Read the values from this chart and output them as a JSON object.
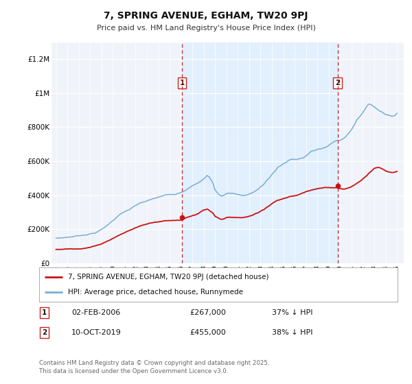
{
  "title": "7, SPRING AVENUE, EGHAM, TW20 9PJ",
  "subtitle": "Price paid vs. HM Land Registry's House Price Index (HPI)",
  "background_color": "#ffffff",
  "plot_bg_color": "#f0f4fa",
  "ylabel_color": "#333333",
  "sale1_price": 267000,
  "sale1_year": 2006.085,
  "sale2_price": 455000,
  "sale2_year": 2019.775,
  "hpi_color": "#7aadd4",
  "price_color": "#cc1111",
  "vline_color": "#cc2222",
  "shade_color": "#ddeeff",
  "ylim": [
    0,
    1300000
  ],
  "yticks": [
    0,
    200000,
    400000,
    600000,
    800000,
    1000000,
    1200000
  ],
  "ytick_labels": [
    "£0",
    "£200K",
    "£400K",
    "£600K",
    "£800K",
    "£1M",
    "£1.2M"
  ],
  "legend_label_price": "7, SPRING AVENUE, EGHAM, TW20 9PJ (detached house)",
  "legend_label_hpi": "HPI: Average price, detached house, Runnymede",
  "sale1_date_str": "02-FEB-2006",
  "sale2_date_str": "10-OCT-2019",
  "sale1_pct": "37% ↓ HPI",
  "sale2_pct": "38% ↓ HPI",
  "sale1_price_str": "£267,000",
  "sale2_price_str": "£455,000",
  "footer": "Contains HM Land Registry data © Crown copyright and database right 2025.\nThis data is licensed under the Open Government Licence v3.0.",
  "hpi_keypoints": [
    [
      1995.0,
      145000
    ],
    [
      1995.5,
      148000
    ],
    [
      1996.0,
      152000
    ],
    [
      1996.5,
      156000
    ],
    [
      1997.0,
      162000
    ],
    [
      1997.5,
      168000
    ],
    [
      1998.0,
      175000
    ],
    [
      1998.5,
      183000
    ],
    [
      1999.0,
      200000
    ],
    [
      1999.5,
      225000
    ],
    [
      2000.0,
      255000
    ],
    [
      2000.5,
      285000
    ],
    [
      2001.0,
      305000
    ],
    [
      2001.5,
      320000
    ],
    [
      2002.0,
      340000
    ],
    [
      2002.5,
      355000
    ],
    [
      2003.0,
      365000
    ],
    [
      2003.5,
      375000
    ],
    [
      2004.0,
      385000
    ],
    [
      2004.5,
      395000
    ],
    [
      2005.0,
      400000
    ],
    [
      2005.5,
      405000
    ],
    [
      2006.0,
      420000
    ],
    [
      2006.5,
      440000
    ],
    [
      2007.0,
      460000
    ],
    [
      2007.5,
      475000
    ],
    [
      2007.8,
      490000
    ],
    [
      2008.0,
      500000
    ],
    [
      2008.3,
      520000
    ],
    [
      2008.5,
      510000
    ],
    [
      2008.8,
      475000
    ],
    [
      2009.0,
      435000
    ],
    [
      2009.3,
      410000
    ],
    [
      2009.5,
      400000
    ],
    [
      2009.8,
      405000
    ],
    [
      2010.0,
      415000
    ],
    [
      2010.3,
      420000
    ],
    [
      2010.5,
      418000
    ],
    [
      2010.8,
      415000
    ],
    [
      2011.0,
      412000
    ],
    [
      2011.3,
      408000
    ],
    [
      2011.5,
      405000
    ],
    [
      2011.8,
      408000
    ],
    [
      2012.0,
      415000
    ],
    [
      2012.3,
      422000
    ],
    [
      2012.5,
      430000
    ],
    [
      2012.8,
      440000
    ],
    [
      2013.0,
      455000
    ],
    [
      2013.3,
      470000
    ],
    [
      2013.5,
      490000
    ],
    [
      2013.8,
      510000
    ],
    [
      2014.0,
      530000
    ],
    [
      2014.3,
      550000
    ],
    [
      2014.5,
      570000
    ],
    [
      2014.8,
      580000
    ],
    [
      2015.0,
      590000
    ],
    [
      2015.3,
      600000
    ],
    [
      2015.5,
      610000
    ],
    [
      2015.8,
      615000
    ],
    [
      2016.0,
      615000
    ],
    [
      2016.3,
      620000
    ],
    [
      2016.5,
      625000
    ],
    [
      2016.8,
      630000
    ],
    [
      2017.0,
      640000
    ],
    [
      2017.3,
      655000
    ],
    [
      2017.5,
      665000
    ],
    [
      2017.8,
      670000
    ],
    [
      2018.0,
      675000
    ],
    [
      2018.3,
      680000
    ],
    [
      2018.5,
      685000
    ],
    [
      2018.8,
      690000
    ],
    [
      2019.0,
      700000
    ],
    [
      2019.3,
      715000
    ],
    [
      2019.5,
      725000
    ],
    [
      2019.775,
      730000
    ],
    [
      2020.0,
      730000
    ],
    [
      2020.3,
      745000
    ],
    [
      2020.5,
      755000
    ],
    [
      2020.8,
      780000
    ],
    [
      2021.0,
      800000
    ],
    [
      2021.3,
      830000
    ],
    [
      2021.5,
      855000
    ],
    [
      2021.8,
      880000
    ],
    [
      2022.0,
      900000
    ],
    [
      2022.3,
      930000
    ],
    [
      2022.5,
      950000
    ],
    [
      2022.8,
      945000
    ],
    [
      2023.0,
      935000
    ],
    [
      2023.3,
      920000
    ],
    [
      2023.5,
      910000
    ],
    [
      2023.8,
      900000
    ],
    [
      2024.0,
      895000
    ],
    [
      2024.3,
      890000
    ],
    [
      2024.5,
      885000
    ],
    [
      2024.8,
      888000
    ],
    [
      2025.0,
      900000
    ]
  ],
  "price_keypoints": [
    [
      1995.0,
      80000
    ],
    [
      1995.5,
      81000
    ],
    [
      1996.0,
      83000
    ],
    [
      1996.5,
      85000
    ],
    [
      1997.0,
      88000
    ],
    [
      1997.5,
      92000
    ],
    [
      1998.0,
      98000
    ],
    [
      1998.5,
      106000
    ],
    [
      1999.0,
      118000
    ],
    [
      1999.5,
      135000
    ],
    [
      2000.0,
      152000
    ],
    [
      2000.5,
      170000
    ],
    [
      2001.0,
      185000
    ],
    [
      2001.5,
      200000
    ],
    [
      2002.0,
      215000
    ],
    [
      2002.5,
      228000
    ],
    [
      2003.0,
      238000
    ],
    [
      2003.5,
      248000
    ],
    [
      2004.0,
      255000
    ],
    [
      2004.5,
      260000
    ],
    [
      2005.0,
      262000
    ],
    [
      2005.5,
      264000
    ],
    [
      2006.0,
      267000
    ],
    [
      2006.085,
      267000
    ],
    [
      2006.3,
      275000
    ],
    [
      2006.5,
      283000
    ],
    [
      2007.0,
      295000
    ],
    [
      2007.5,
      305000
    ],
    [
      2007.8,
      318000
    ],
    [
      2008.0,
      325000
    ],
    [
      2008.3,
      330000
    ],
    [
      2008.5,
      322000
    ],
    [
      2008.8,
      305000
    ],
    [
      2009.0,
      285000
    ],
    [
      2009.3,
      272000
    ],
    [
      2009.5,
      265000
    ],
    [
      2009.8,
      268000
    ],
    [
      2010.0,
      275000
    ],
    [
      2010.3,
      280000
    ],
    [
      2010.5,
      278000
    ],
    [
      2010.8,
      276000
    ],
    [
      2011.0,
      275000
    ],
    [
      2011.3,
      274000
    ],
    [
      2011.5,
      275000
    ],
    [
      2011.8,
      278000
    ],
    [
      2012.0,
      282000
    ],
    [
      2012.3,
      288000
    ],
    [
      2012.5,
      295000
    ],
    [
      2012.8,
      303000
    ],
    [
      2013.0,
      312000
    ],
    [
      2013.3,
      322000
    ],
    [
      2013.5,
      333000
    ],
    [
      2013.8,
      345000
    ],
    [
      2014.0,
      356000
    ],
    [
      2014.3,
      367000
    ],
    [
      2014.5,
      375000
    ],
    [
      2014.8,
      380000
    ],
    [
      2015.0,
      385000
    ],
    [
      2015.3,
      392000
    ],
    [
      2015.5,
      398000
    ],
    [
      2015.8,
      403000
    ],
    [
      2016.0,
      405000
    ],
    [
      2016.3,
      410000
    ],
    [
      2016.5,
      418000
    ],
    [
      2016.8,
      425000
    ],
    [
      2017.0,
      432000
    ],
    [
      2017.3,
      438000
    ],
    [
      2017.5,
      443000
    ],
    [
      2017.8,
      447000
    ],
    [
      2018.0,
      450000
    ],
    [
      2018.3,
      452000
    ],
    [
      2018.5,
      453000
    ],
    [
      2018.8,
      454000
    ],
    [
      2019.0,
      454000
    ],
    [
      2019.3,
      454500
    ],
    [
      2019.5,
      454800
    ],
    [
      2019.775,
      455000
    ],
    [
      2020.0,
      452000
    ],
    [
      2020.3,
      448000
    ],
    [
      2020.5,
      450000
    ],
    [
      2020.8,
      458000
    ],
    [
      2021.0,
      465000
    ],
    [
      2021.3,
      475000
    ],
    [
      2021.5,
      485000
    ],
    [
      2021.8,
      498000
    ],
    [
      2022.0,
      510000
    ],
    [
      2022.3,
      525000
    ],
    [
      2022.5,
      540000
    ],
    [
      2022.8,
      558000
    ],
    [
      2023.0,
      572000
    ],
    [
      2023.3,
      578000
    ],
    [
      2023.5,
      575000
    ],
    [
      2023.8,
      565000
    ],
    [
      2024.0,
      558000
    ],
    [
      2024.3,
      552000
    ],
    [
      2024.5,
      548000
    ],
    [
      2024.8,
      550000
    ],
    [
      2025.0,
      555000
    ]
  ]
}
